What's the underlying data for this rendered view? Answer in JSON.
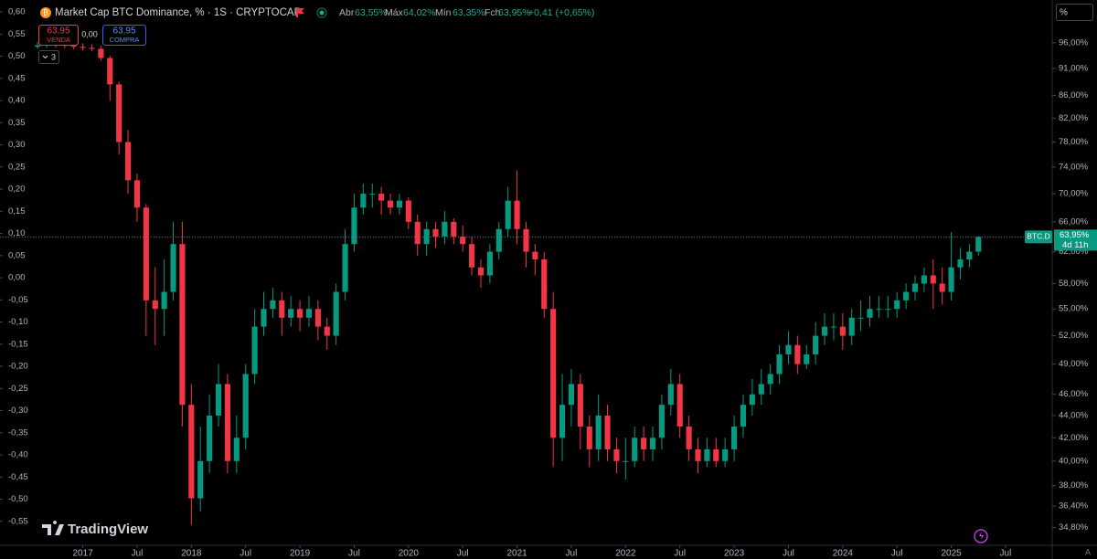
{
  "header": {
    "title": "Market Cap BTC Dominance, % · 1S · CRYPTOCAP",
    "open_label": "Abr",
    "open": "63,55%",
    "high_label": "Máx",
    "high": "64,02%",
    "low_label": "Mín",
    "low": "63,35%",
    "close_label": "Fch",
    "close": "63,95%",
    "change": "+0,41 (+0,65%)"
  },
  "trade": {
    "sell_price": "63,95",
    "sell": "VENDA",
    "spread": "0,00",
    "buy_price": "63,95",
    "buy": "COMPRA",
    "indicators_count": "3"
  },
  "price_label": {
    "symbol": "BTC.D",
    "price": "63,95%",
    "countdown": "4d 11h"
  },
  "brand": "TradingView",
  "scale_mode": "%",
  "auto_scale": "A",
  "chart_data": {
    "type": "candlestick",
    "up_color": "#089981",
    "down_color": "#f23645",
    "log_scale": true,
    "x": [
      "2016-08",
      "2016-09",
      "2016-10",
      "2016-11",
      "2016-12",
      "2017-01",
      "2017-02",
      "2017-03",
      "2017-04",
      "2017-05",
      "2017-06",
      "2017-07",
      "2017-08",
      "2017-09",
      "2017-10",
      "2017-11",
      "2017-12",
      "2018-01",
      "2018-02",
      "2018-03",
      "2018-04",
      "2018-05",
      "2018-06",
      "2018-07",
      "2018-08",
      "2018-09",
      "2018-10",
      "2018-11",
      "2018-12",
      "2019-01",
      "2019-02",
      "2019-03",
      "2019-04",
      "2019-05",
      "2019-06",
      "2019-07",
      "2019-08",
      "2019-09",
      "2019-10",
      "2019-11",
      "2019-12",
      "2020-01",
      "2020-02",
      "2020-03",
      "2020-04",
      "2020-05",
      "2020-06",
      "2020-07",
      "2020-08",
      "2020-09",
      "2020-10",
      "2020-11",
      "2020-12",
      "2021-01",
      "2021-02",
      "2021-03",
      "2021-04",
      "2021-05",
      "2021-06",
      "2021-07",
      "2021-08",
      "2021-09",
      "2021-10",
      "2021-11",
      "2021-12",
      "2022-01",
      "2022-02",
      "2022-03",
      "2022-04",
      "2022-05",
      "2022-06",
      "2022-07",
      "2022-08",
      "2022-09",
      "2022-10",
      "2022-11",
      "2022-12",
      "2023-01",
      "2023-02",
      "2023-03",
      "2023-04",
      "2023-05",
      "2023-06",
      "2023-07",
      "2023-08",
      "2023-09",
      "2023-10",
      "2023-11",
      "2023-12",
      "2024-01",
      "2024-02",
      "2024-03",
      "2024-04",
      "2024-05",
      "2024-06",
      "2024-07",
      "2024-08",
      "2024-09",
      "2024-10",
      "2024-11",
      "2024-12",
      "2025-01",
      "2025-02",
      "2025-03",
      "2025-04"
    ],
    "open": [
      95.2,
      95.5,
      95.8,
      95.6,
      95.4,
      95.2,
      95.0,
      94.8,
      93,
      88,
      78,
      72,
      68,
      56,
      55,
      57,
      63,
      45,
      37,
      40,
      44,
      47,
      40,
      42,
      48,
      53,
      55,
      56,
      54,
      55,
      54,
      55,
      53,
      52,
      57,
      63,
      68,
      70,
      70,
      69,
      68,
      69,
      66,
      63,
      65,
      64,
      66,
      64,
      63,
      60,
      59,
      62,
      65,
      69,
      65,
      62,
      61,
      55,
      42,
      45,
      47,
      43,
      41,
      44,
      41,
      40,
      40,
      42,
      41,
      42,
      45,
      47,
      43,
      41,
      40,
      41,
      40,
      41,
      43,
      45,
      46,
      47,
      48,
      50,
      51,
      49,
      50,
      52,
      53,
      53,
      52,
      54,
      54,
      55,
      55,
      55,
      56,
      57,
      58,
      59,
      58,
      57,
      60,
      61,
      62
    ],
    "high": [
      96.2,
      96.5,
      96.4,
      96.1,
      96.0,
      95.9,
      95.7,
      95.5,
      93.5,
      88.5,
      80,
      73,
      68.5,
      60,
      61,
      66,
      66,
      47,
      43,
      46,
      49,
      48,
      44,
      49,
      55,
      57,
      57.5,
      57,
      56.5,
      56,
      56.5,
      56,
      54,
      58,
      65,
      70,
      71.5,
      71.5,
      71,
      70,
      70,
      69.5,
      67,
      66,
      66,
      67.5,
      66.5,
      65.5,
      64,
      61,
      63,
      66,
      71,
      73.5,
      66,
      63,
      62,
      57,
      48,
      48.5,
      48,
      44,
      46,
      45,
      42,
      42,
      43,
      43,
      43,
      46,
      48.5,
      48,
      44,
      42,
      42,
      42,
      42,
      44,
      46,
      47.5,
      48.5,
      49,
      51,
      52.5,
      52,
      51,
      53.5,
      54.5,
      54.5,
      54.5,
      55,
      56,
      56.5,
      56.5,
      56.5,
      57,
      58,
      59,
      60,
      61,
      60,
      64.6,
      62.5,
      63,
      64.02
    ],
    "low": [
      94.8,
      95.0,
      95.1,
      94.9,
      94.7,
      94.5,
      94.3,
      92.5,
      85,
      76,
      70,
      66,
      52,
      51,
      52,
      56,
      43,
      35,
      36,
      39,
      43,
      39,
      39,
      41,
      47,
      52,
      54,
      52,
      53,
      52.5,
      53,
      51.5,
      50.5,
      51,
      56,
      62,
      67,
      68,
      67,
      67,
      67,
      65,
      61.5,
      61.5,
      62.5,
      63,
      63,
      62,
      59,
      57.5,
      58,
      61,
      64,
      63,
      60,
      59,
      54,
      39.5,
      40,
      43,
      41,
      39.5,
      40,
      40,
      39,
      38.5,
      39.5,
      40,
      40,
      41,
      44,
      42,
      40,
      39,
      39.5,
      39.5,
      39.5,
      40,
      42,
      44,
      45,
      46,
      47,
      49,
      48,
      48.5,
      49,
      51,
      51.5,
      50.5,
      51,
      52.5,
      53,
      54,
      54,
      54,
      55,
      56,
      57,
      55,
      55.5,
      56,
      58.5,
      60,
      61.5
    ],
    "close": [
      95.5,
      95.8,
      95.6,
      95.4,
      95.2,
      95.0,
      94.8,
      93,
      88,
      78,
      72,
      68,
      56,
      55,
      57,
      63,
      45,
      37,
      40,
      44,
      47,
      40,
      42,
      48,
      53,
      55,
      56,
      54,
      55,
      54,
      55,
      53,
      52,
      57,
      63,
      68,
      70,
      70,
      69,
      68,
      69,
      66,
      63,
      65,
      64,
      66,
      64,
      63,
      60,
      59,
      62,
      65,
      69,
      65,
      62,
      61,
      55,
      42,
      45,
      47,
      43,
      41,
      44,
      41,
      40,
      40,
      42,
      41,
      42,
      45,
      47,
      43,
      41,
      40,
      41,
      40,
      41,
      43,
      45,
      46,
      47,
      48,
      50,
      51,
      49,
      50,
      52,
      53,
      53,
      52,
      54,
      54,
      55,
      55,
      55,
      56,
      57,
      58,
      59,
      58,
      57,
      60,
      61,
      62,
      63.95
    ],
    "ylim": [
      33.6,
      105
    ],
    "yticks": [
      {
        "value": 34.8,
        "label": "34,80%"
      },
      {
        "value": 36.4,
        "label": "36,40%"
      },
      {
        "value": 38,
        "label": "38,00%"
      },
      {
        "value": 40,
        "label": "40,00%"
      },
      {
        "value": 42,
        "label": "42,00%"
      },
      {
        "value": 44,
        "label": "44,00%"
      },
      {
        "value": 46,
        "label": "46,00%"
      },
      {
        "value": 49,
        "label": "49,00%"
      },
      {
        "value": 52,
        "label": "52,00%"
      },
      {
        "value": 55,
        "label": "55,00%"
      },
      {
        "value": 58,
        "label": "58,00%"
      },
      {
        "value": 62,
        "label": "62,00%"
      },
      {
        "value": 66,
        "label": "66,00%"
      },
      {
        "value": 70,
        "label": "70,00%"
      },
      {
        "value": 74,
        "label": "74,00%"
      },
      {
        "value": 78,
        "label": "78,00%"
      },
      {
        "value": 82,
        "label": "82,00%"
      },
      {
        "value": 86,
        "label": "86,00%"
      },
      {
        "value": 91,
        "label": "91,00%"
      },
      {
        "value": 96,
        "label": "96,00%"
      }
    ],
    "y2lim": [
      -0.602,
      0.627
    ],
    "y2ticks": [
      {
        "value": 0.6,
        "label": "0,60"
      },
      {
        "value": 0.55,
        "label": "0,55"
      },
      {
        "value": 0.5,
        "label": "0,50"
      },
      {
        "value": 0.45,
        "label": "0,45"
      },
      {
        "value": 0.4,
        "label": "0,40"
      },
      {
        "value": 0.35,
        "label": "0,35"
      },
      {
        "value": 0.3,
        "label": "0,30"
      },
      {
        "value": 0.25,
        "label": "0,25"
      },
      {
        "value": 0.2,
        "label": "0,20"
      },
      {
        "value": 0.15,
        "label": "0,15"
      },
      {
        "value": 0.1,
        "label": "0,10"
      },
      {
        "value": 0.05,
        "label": "0,05"
      },
      {
        "value": 0,
        "label": "0,00"
      },
      {
        "value": -0.05,
        "label": "-0,05"
      },
      {
        "value": -0.1,
        "label": "-0,10"
      },
      {
        "value": -0.15,
        "label": "-0,15"
      },
      {
        "value": -0.2,
        "label": "-0,20"
      },
      {
        "value": -0.25,
        "label": "-0,25"
      },
      {
        "value": -0.3,
        "label": "-0,30"
      },
      {
        "value": -0.35,
        "label": "-0,35"
      },
      {
        "value": -0.4,
        "label": "-0,40"
      },
      {
        "value": -0.45,
        "label": "-0,45"
      },
      {
        "value": -0.5,
        "label": "-0,50"
      },
      {
        "value": -0.55,
        "label": "-0,55"
      }
    ],
    "xticks": [
      {
        "value": "2017-01",
        "label": "2017"
      },
      {
        "value": "2017-07",
        "label": "Jul"
      },
      {
        "value": "2018-01",
        "label": "2018"
      },
      {
        "value": "2018-07",
        "label": "Jul"
      },
      {
        "value": "2019-01",
        "label": "2019"
      },
      {
        "value": "2019-07",
        "label": "Jul"
      },
      {
        "value": "2020-01",
        "label": "2020"
      },
      {
        "value": "2020-07",
        "label": "Jul"
      },
      {
        "value": "2021-01",
        "label": "2021"
      },
      {
        "value": "2021-07",
        "label": "Jul"
      },
      {
        "value": "2022-01",
        "label": "2022"
      },
      {
        "value": "2022-07",
        "label": "Jul"
      },
      {
        "value": "2023-01",
        "label": "2023"
      },
      {
        "value": "2023-07",
        "label": "Jul"
      },
      {
        "value": "2024-01",
        "label": "2024"
      },
      {
        "value": "2024-07",
        "label": "Jul"
      },
      {
        "value": "2025-01",
        "label": "2025"
      },
      {
        "value": "2025-07",
        "label": "Jul"
      }
    ]
  }
}
